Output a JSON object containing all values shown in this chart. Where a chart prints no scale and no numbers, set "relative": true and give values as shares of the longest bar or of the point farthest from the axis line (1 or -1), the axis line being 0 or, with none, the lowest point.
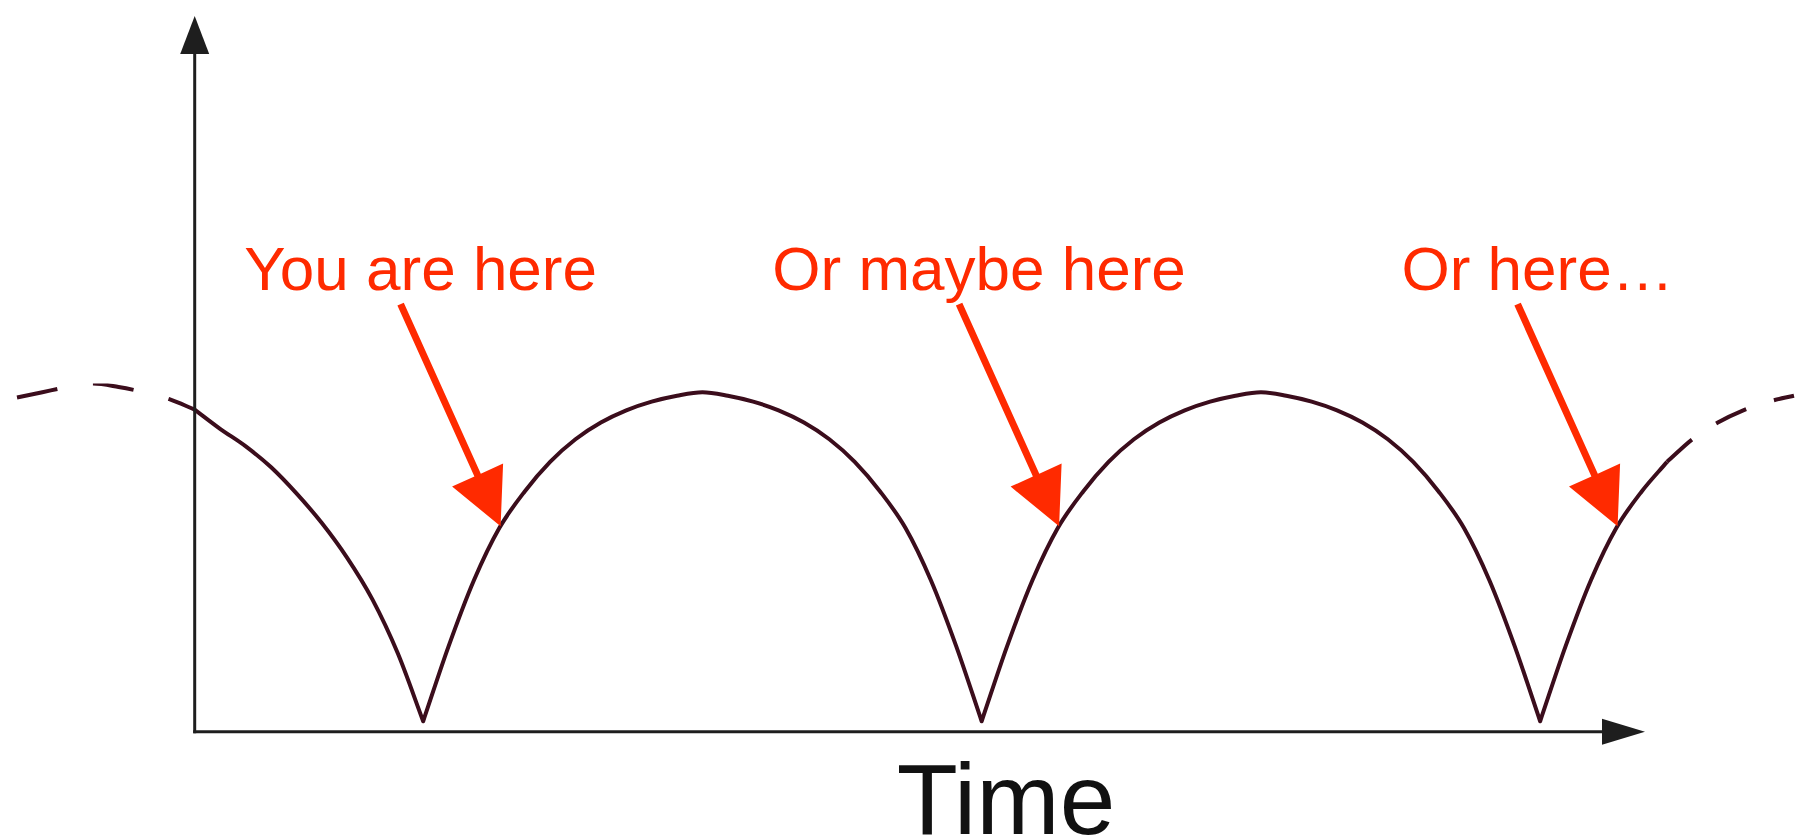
{
  "chart_data": {
    "type": "line",
    "relative": true,
    "xlabel": "Time",
    "marker": "none",
    "categories": [
      null,
      null,
      null,
      null,
      null,
      null,
      null,
      null,
      null,
      null,
      null,
      null,
      null,
      null,
      null,
      null,
      null,
      null,
      null,
      null,
      null,
      null,
      null,
      null,
      null,
      null,
      null,
      null,
      null,
      null,
      null,
      null,
      null,
      null,
      null,
      null,
      null,
      null,
      null,
      null,
      null,
      null,
      null,
      null,
      null,
      null,
      null,
      null,
      null,
      null,
      null,
      null,
      null,
      null,
      null,
      null,
      null,
      null,
      null,
      null,
      null,
      null,
      null,
      null,
      null,
      null,
      null,
      null,
      null,
      null,
      null
    ],
    "series": [
      {
        "color": "#3b0d1c",
        "line_style": "dashed",
        "values": [
          0.96,
          0.975,
          0.99,
          1.0,
          0.99,
          0.975,
          0.955,
          0.925,
          null,
          null,
          null,
          null,
          null,
          null,
          null,
          null,
          null,
          null,
          null,
          null,
          null,
          null,
          null,
          null,
          null,
          null,
          null,
          null,
          null,
          null,
          null,
          null,
          null,
          null,
          null,
          null,
          null,
          null,
          null,
          null,
          null,
          null,
          null,
          null,
          null,
          null,
          null,
          null,
          null,
          null,
          null,
          null,
          null,
          null,
          null,
          null,
          null,
          null,
          null,
          null,
          null,
          null,
          null,
          null,
          null,
          null,
          null,
          null,
          null,
          null,
          null
        ]
      },
      {
        "color": "#3b0d1c",
        "line_style": "solid",
        "values": [
          null,
          null,
          null,
          null,
          null,
          null,
          null,
          0.925,
          0.87,
          0.82,
          0.76,
          0.685,
          0.6,
          0.5,
          0.38,
          0.225,
          0.03,
          0.245,
          0.435,
          0.585,
          0.69,
          0.775,
          0.84,
          0.888,
          0.923,
          0.948,
          0.965,
          0.975,
          0.965,
          0.948,
          0.923,
          0.888,
          0.84,
          0.775,
          0.69,
          0.585,
          0.435,
          0.245,
          0.03,
          0.245,
          0.435,
          0.585,
          0.69,
          0.775,
          0.84,
          0.888,
          0.923,
          0.948,
          0.965,
          0.975,
          0.965,
          0.948,
          0.923,
          0.888,
          0.84,
          0.775,
          0.69,
          0.585,
          0.435,
          0.245,
          0.03,
          0.245,
          0.435,
          0.585,
          0.69,
          0.775,
          null,
          null,
          null,
          null,
          null
        ]
      },
      {
        "color": "#3b0d1c",
        "line_style": "dashed",
        "values": [
          null,
          null,
          null,
          null,
          null,
          null,
          null,
          null,
          null,
          null,
          null,
          null,
          null,
          null,
          null,
          null,
          null,
          null,
          null,
          null,
          null,
          null,
          null,
          null,
          null,
          null,
          null,
          null,
          null,
          null,
          null,
          null,
          null,
          null,
          null,
          null,
          null,
          null,
          null,
          null,
          null,
          null,
          null,
          null,
          null,
          null,
          null,
          null,
          null,
          null,
          null,
          null,
          null,
          null,
          null,
          null,
          null,
          null,
          null,
          null,
          null,
          null,
          null,
          null,
          null,
          0.775,
          0.84,
          0.888,
          0.923,
          0.948,
          0.965
        ]
      }
    ],
    "annotations": [
      "You are here",
      "Or maybe here",
      "Or here…"
    ]
  }
}
